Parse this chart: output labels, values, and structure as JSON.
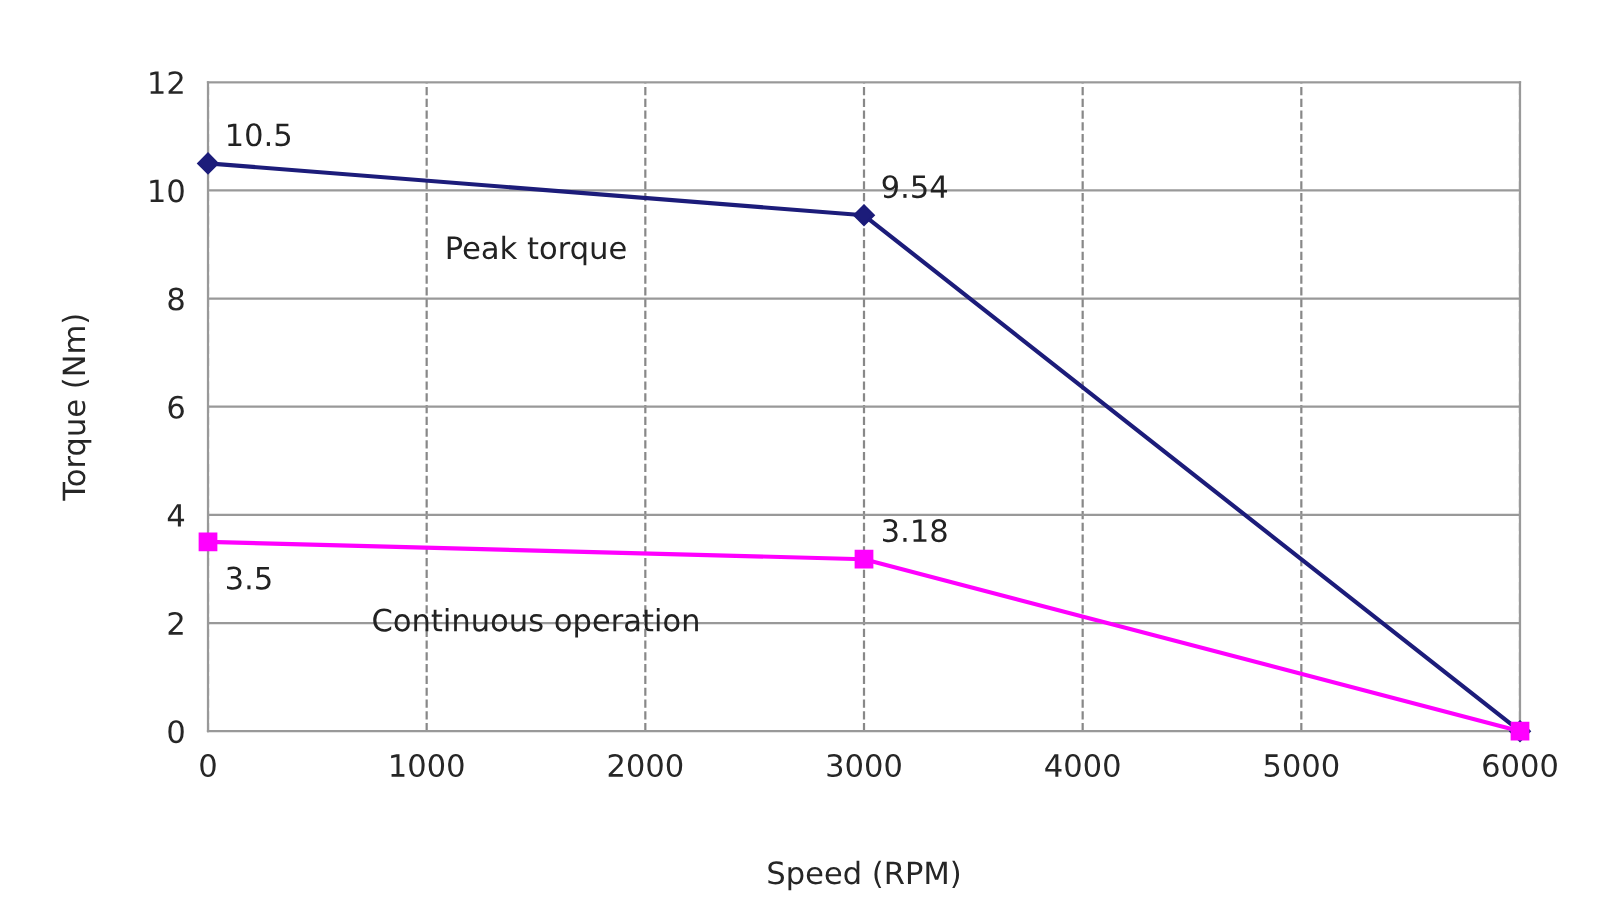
{
  "chart_data": {
    "type": "line",
    "xlabel": "Speed (RPM)",
    "ylabel": "Torque (Nm)",
    "x": [
      0,
      3000,
      6000
    ],
    "series": [
      {
        "name": "Peak torque",
        "color": "#1c1c7a",
        "marker": "diamond",
        "values": [
          10.5,
          9.54,
          0
        ],
        "value_labels": [
          "10.5",
          "9.54",
          null
        ]
      },
      {
        "name": "Continuous operation",
        "color": "#ff00ff",
        "marker": "square",
        "values": [
          3.5,
          3.18,
          0
        ],
        "value_labels": [
          "3.5",
          "3.18",
          null
        ]
      }
    ],
    "xlim": [
      0,
      6000
    ],
    "xticks": [
      0,
      1000,
      2000,
      3000,
      4000,
      5000,
      6000
    ],
    "ylim": [
      0,
      12
    ],
    "yticks": [
      0,
      2,
      4,
      6,
      8,
      10,
      12
    ],
    "grid": true,
    "line_style": "solid",
    "legend": false
  }
}
